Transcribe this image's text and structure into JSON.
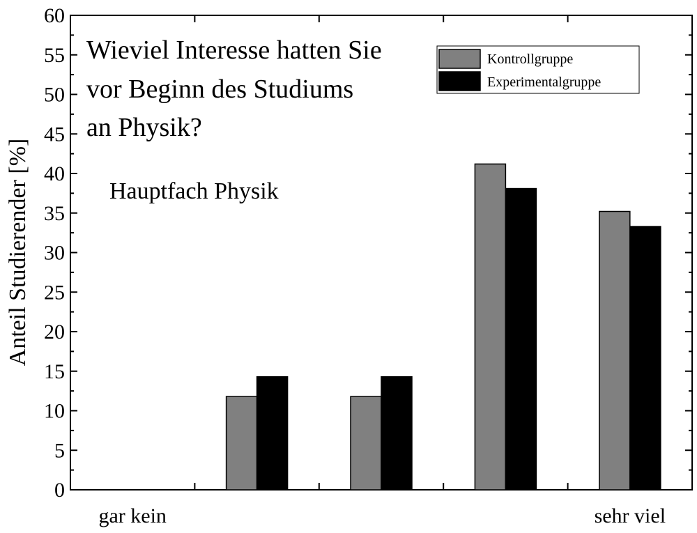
{
  "chart_data": {
    "type": "bar",
    "title": "",
    "annotation": {
      "question_lines": [
        "Wieviel Interesse hatten Sie",
        "vor Beginn des Studiums",
        "an Physik?"
      ],
      "subtitle": "Hauptfach Physik"
    },
    "xlabel": "",
    "ylabel": "Anteil Studierender [%]",
    "ylim": [
      0,
      60
    ],
    "yticks": [
      0,
      5,
      10,
      15,
      20,
      25,
      30,
      35,
      40,
      45,
      50,
      55,
      60
    ],
    "categories": [
      "gar kein",
      "",
      "",
      "",
      "sehr viel"
    ],
    "series": [
      {
        "name": "Kontrollgruppe",
        "color": "#808080",
        "values": [
          0,
          11.8,
          11.8,
          41.2,
          35.2
        ]
      },
      {
        "name": "Experimentalgruppe",
        "color": "#000000",
        "values": [
          0,
          14.3,
          14.3,
          38.1,
          33.3
        ]
      }
    ],
    "legend": "top-right",
    "grid": false
  }
}
